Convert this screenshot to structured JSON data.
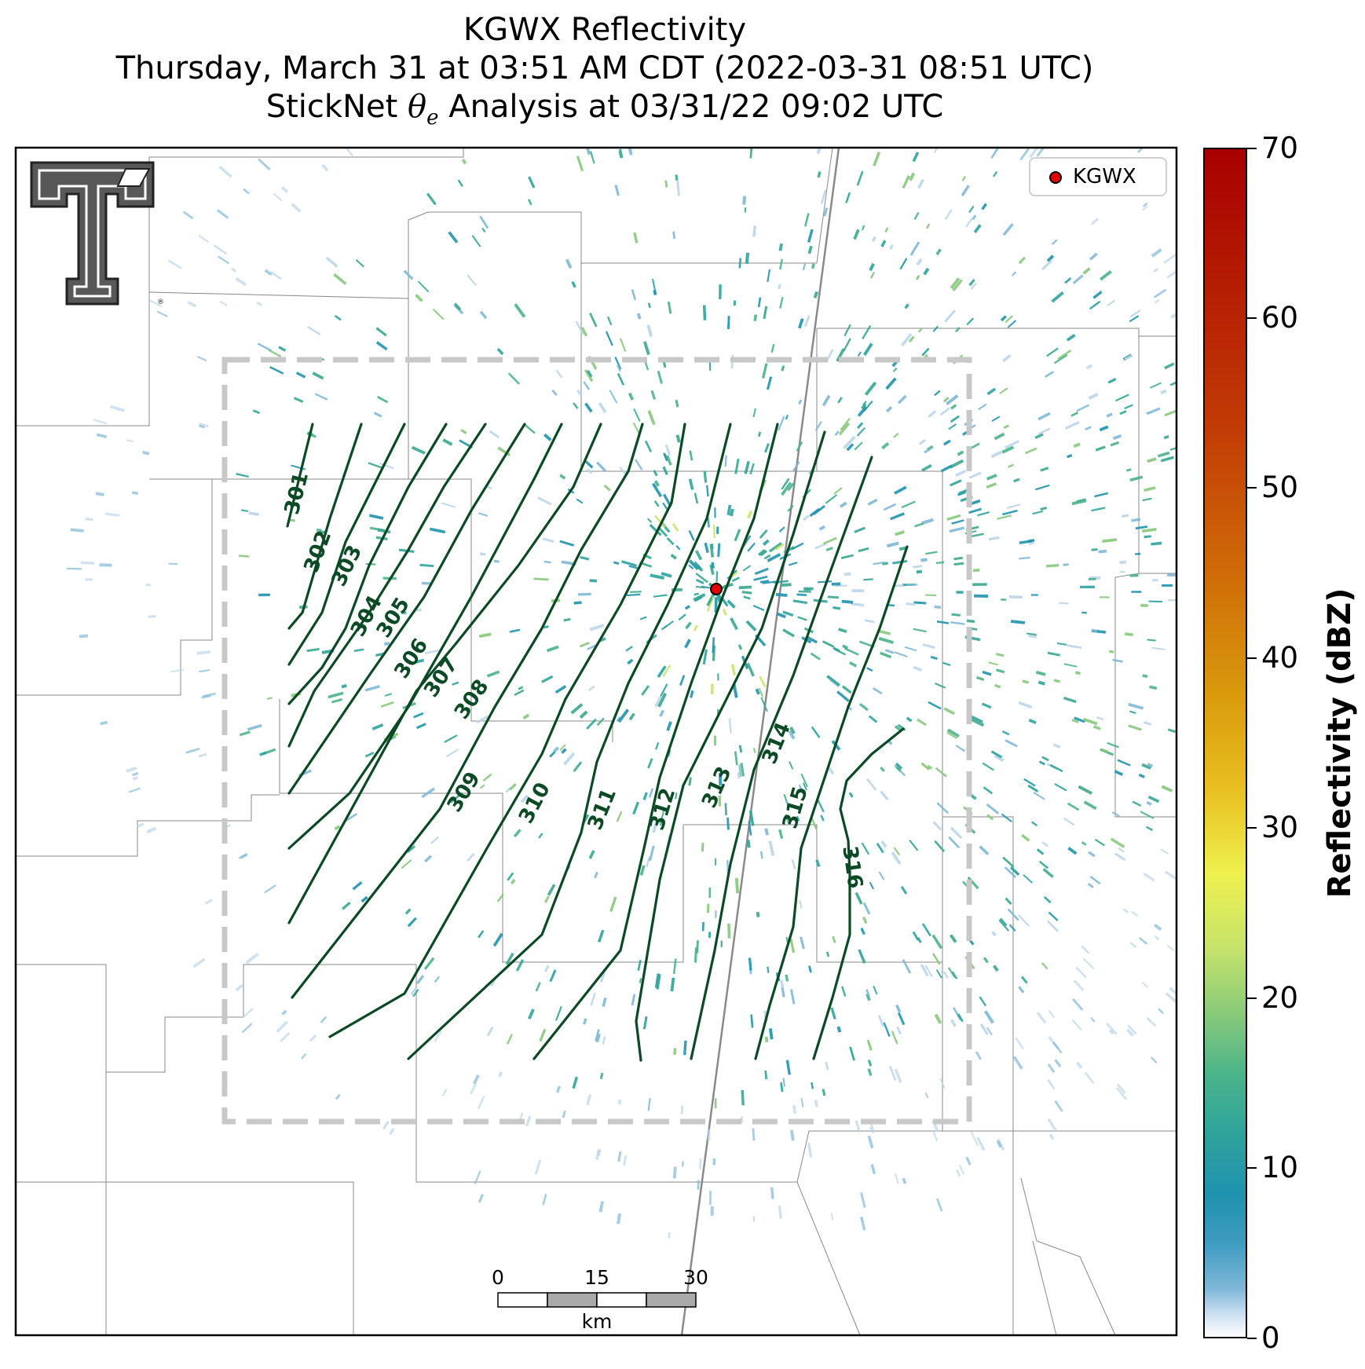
{
  "title": {
    "line1": "KGWX Reflectivity",
    "line2": "Thursday, March 31 at 03:51 AM CDT (2022-03-31 08:51 UTC)",
    "line3_prefix": "StickNet ",
    "line3_suffix": " Analysis at 03/31/22 09:02 UTC"
  },
  "legend": {
    "marker_label": "KGWX",
    "marker_color": "#e00000"
  },
  "colorbar": {
    "label": "Reflectivity (dBZ)",
    "min": 0,
    "max": 70,
    "ticks": [
      "0",
      "10",
      "20",
      "30",
      "40",
      "50",
      "60",
      "70"
    ]
  },
  "scale_bar": {
    "ticks": [
      "0",
      "15",
      "30"
    ],
    "unit": "km"
  },
  "contours": {
    "color": "#0b4a24",
    "labels": [
      "301",
      "302",
      "303",
      "304",
      "305",
      "306",
      "307",
      "308",
      "309",
      "310",
      "311",
      "312",
      "313",
      "314",
      "315",
      "316"
    ]
  },
  "analysis_box_color": "#c8c8c8",
  "logo": "texas-tech-double-t-logo"
}
